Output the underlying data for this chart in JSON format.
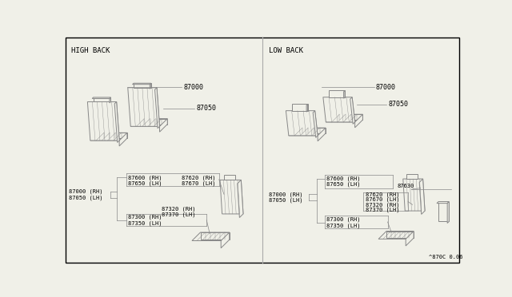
{
  "background_color": "#f0f0e8",
  "border_color": "#000000",
  "high_back_label": "HIGH BACK",
  "low_back_label": "LOW BACK",
  "footer_label": "^870C 0.06",
  "text_color": "#000000",
  "line_color": "#888888",
  "seat_color": "#888888"
}
